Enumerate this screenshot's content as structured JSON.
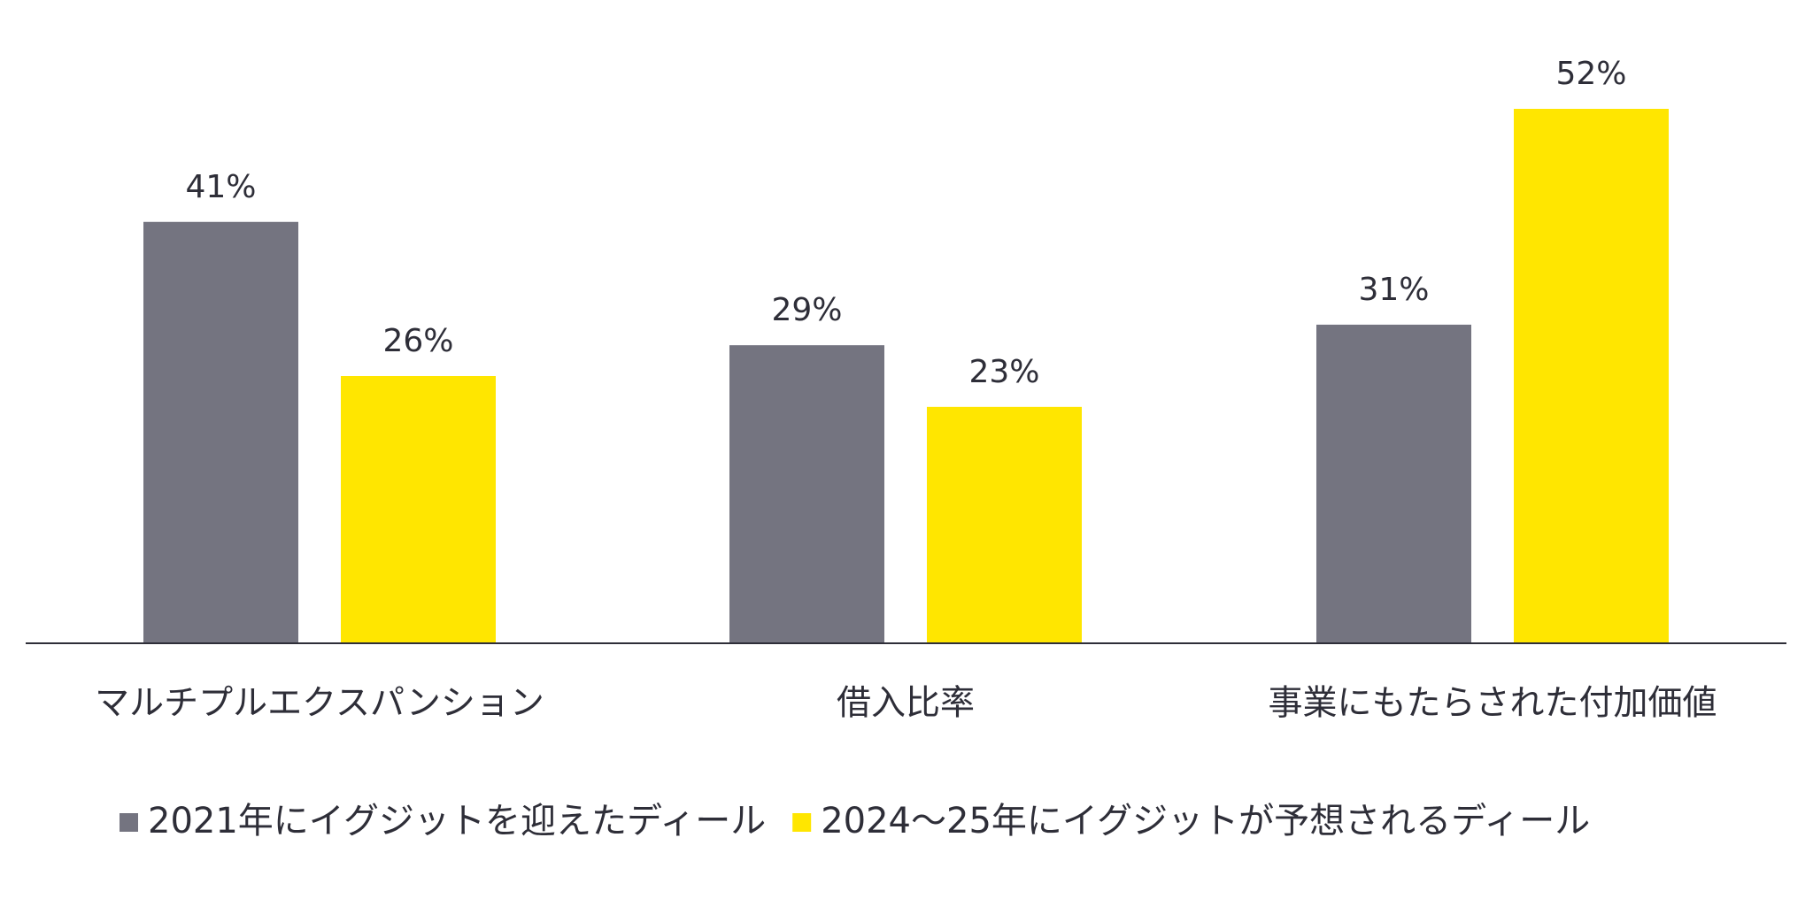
{
  "chart_data": {
    "type": "bar",
    "categories": [
      "マルチプルエクスパンション",
      "借入比率",
      "事業にもたらされた付加価値"
    ],
    "series": [
      {
        "name": "2021年にイグジットを迎えたディール",
        "color": "#747480",
        "values": [
          41,
          29,
          31
        ],
        "value_labels": [
          "41%",
          "29%",
          "31%"
        ]
      },
      {
        "name": "2024～25年にイグジットが予想されるディール",
        "color": "#ffe600",
        "values": [
          26,
          23,
          52
        ],
        "value_labels": [
          "26%",
          "23%",
          "52%"
        ]
      }
    ],
    "legend": "bottom"
  }
}
